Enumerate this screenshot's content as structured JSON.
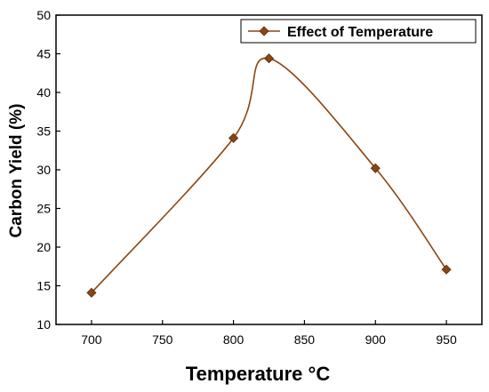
{
  "chart_data": {
    "type": "line",
    "xlabel": "Temperature °C",
    "ylabel": "Carbon Yield (%)",
    "xlim": [
      675,
      975
    ],
    "ylim": [
      10,
      50
    ],
    "x_ticks": [
      700,
      750,
      800,
      850,
      900,
      950
    ],
    "y_ticks": [
      10,
      15,
      20,
      25,
      30,
      35,
      40,
      45,
      50
    ],
    "legend_position": "top-right",
    "grid": false,
    "smoothed": true,
    "series": [
      {
        "name": "Effect of Temperature",
        "color": "#8B4513",
        "marker": "diamond",
        "x": [
          700,
          800,
          825,
          900,
          950
        ],
        "values": [
          14.1,
          34.1,
          44.4,
          30.2,
          17.1
        ]
      }
    ]
  }
}
